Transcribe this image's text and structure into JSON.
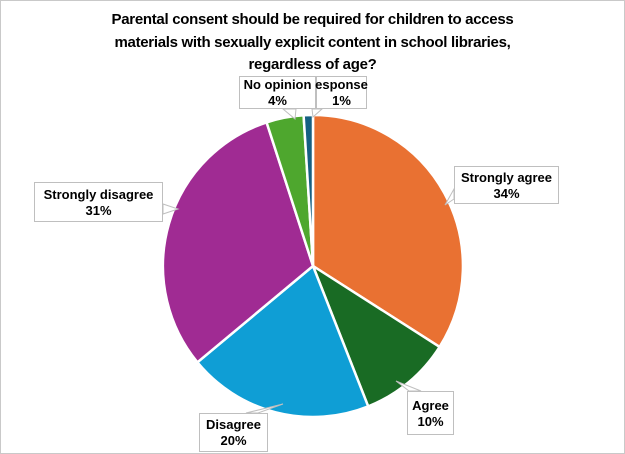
{
  "chart_data": {
    "type": "pie",
    "title": "Parental consent should be required for children to access materials with sexually explicit content in school libraries, regardless of age?",
    "title_lines": [
      "Parental consent should be required for children to access",
      "materials with sexually explicit content in school libraries,",
      "regardless of age?"
    ],
    "unit": "%",
    "start_angle_deg": 0,
    "direction": "clockwise",
    "legend": "none",
    "label_style": "callout-boxes-with-leader-pointers",
    "slices": [
      {
        "key": "strongly-agree",
        "label": "Strongly agree",
        "value": 34,
        "color": "#E97132"
      },
      {
        "key": "agree",
        "label": "Agree",
        "value": 10,
        "color": "#196B24"
      },
      {
        "key": "disagree",
        "label": "Disagree",
        "value": 20,
        "color": "#0F9ED5"
      },
      {
        "key": "strongly-disagree",
        "label": "Strongly disagree",
        "value": 31,
        "color": "#A02B93"
      },
      {
        "key": "no-opinion",
        "label": "No opinion",
        "value": 4,
        "color": "#4EA72E"
      },
      {
        "key": "response",
        "label": "esponse",
        "value": 1,
        "color": "#156082"
      }
    ]
  },
  "callouts": {
    "no_opinion": {
      "title": "No opinion",
      "value": "4%"
    },
    "response": {
      "title": "esponse",
      "value": "1%"
    },
    "strongly_agree": {
      "title": "Strongly agree",
      "value": "34%"
    },
    "agree": {
      "title": "Agree",
      "value": "10%"
    },
    "disagree": {
      "title": "Disagree",
      "value": "20%"
    },
    "strongly_disagree": {
      "title": "Strongly disagree",
      "value": "31%"
    }
  },
  "colors": {
    "background": "#FFFFFF",
    "frame_border": "#C9C9C9",
    "callout_border": "#BFBFBF",
    "callout_fill": "#FFFFFF",
    "slice_separator": "#FFFFFF",
    "text": "#000000"
  }
}
